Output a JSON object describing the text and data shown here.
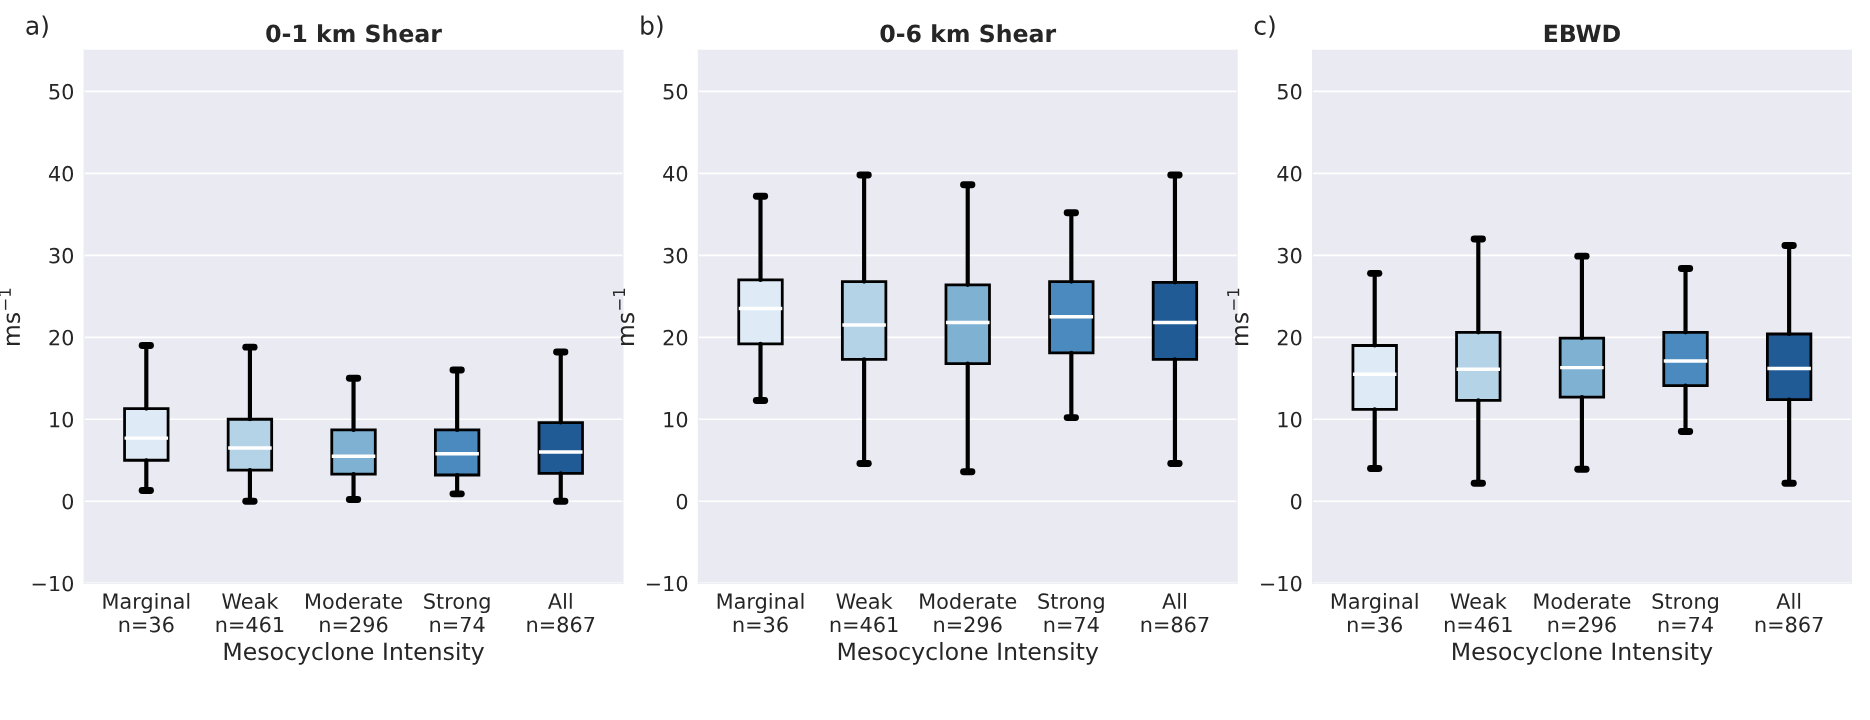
{
  "chart_data": [
    {
      "type": "box",
      "title": "0-1 km Shear",
      "xlabel": "Mesocyclone Intensity",
      "ylabel": "ms$^{−1}$",
      "annotations": [
        "a)"
      ],
      "categories": [
        "Marginal\nn=36",
        "Weak\nn=461",
        "Moderate\nn=296",
        "Strong\nn=74",
        "All\nn=867"
      ],
      "colors": [
        "#deebf7",
        "#b5d3e7",
        "#7fb1d3",
        "#4a8abe",
        "#215b96"
      ],
      "boxes": [
        {
          "low": 1.3,
          "q1": 5,
          "median": 7.7,
          "q3": 11.3,
          "high": 19
        },
        {
          "low": 0,
          "q1": 3.8,
          "median": 6.5,
          "q3": 10,
          "high": 18.8
        },
        {
          "low": 0.2,
          "q1": 3.3,
          "median": 5.5,
          "q3": 8.7,
          "high": 15
        },
        {
          "low": 0.9,
          "q1": 3.2,
          "median": 5.8,
          "q3": 8.7,
          "high": 16
        },
        {
          "low": 0,
          "q1": 3.4,
          "median": 6,
          "q3": 9.6,
          "high": 18.2
        }
      ],
      "ylim": [
        -10,
        55
      ],
      "yticks": [
        -10,
        0,
        10,
        20,
        30,
        40,
        50
      ],
      "grid": "y"
    },
    {
      "type": "box",
      "title": "0-6 km Shear",
      "xlabel": "Mesocyclone Intensity",
      "ylabel": "ms$^{−1}$",
      "annotations": [
        "b)"
      ],
      "categories": [
        "Marginal\nn=36",
        "Weak\nn=461",
        "Moderate\nn=296",
        "Strong\nn=74",
        "All\nn=867"
      ],
      "colors": [
        "#deebf7",
        "#b5d3e7",
        "#7fb1d3",
        "#4a8abe",
        "#215b96"
      ],
      "boxes": [
        {
          "low": 12.3,
          "q1": 19.2,
          "median": 23.5,
          "q3": 27,
          "high": 37.2
        },
        {
          "low": 4.6,
          "q1": 17.3,
          "median": 21.5,
          "q3": 26.8,
          "high": 39.8
        },
        {
          "low": 3.6,
          "q1": 16.8,
          "median": 21.8,
          "q3": 26.4,
          "high": 38.6
        },
        {
          "low": 10.2,
          "q1": 18.1,
          "median": 22.5,
          "q3": 26.8,
          "high": 35.2
        },
        {
          "low": 4.6,
          "q1": 17.3,
          "median": 21.8,
          "q3": 26.7,
          "high": 39.8
        }
      ],
      "ylim": [
        -10,
        55
      ],
      "yticks": [
        -10,
        0,
        10,
        20,
        30,
        40,
        50
      ],
      "grid": "y"
    },
    {
      "type": "box",
      "title": "EBWD",
      "xlabel": "Mesocyclone Intensity",
      "ylabel": "ms$^{−1}$",
      "annotations": [
        "c)"
      ],
      "categories": [
        "Marginal\nn=36",
        "Weak\nn=461",
        "Moderate\nn=296",
        "Strong\nn=74",
        "All\nn=867"
      ],
      "colors": [
        "#deebf7",
        "#b5d3e7",
        "#7fb1d3",
        "#4a8abe",
        "#215b96"
      ],
      "boxes": [
        {
          "low": 4,
          "q1": 11.2,
          "median": 15.5,
          "q3": 19,
          "high": 27.8
        },
        {
          "low": 2.2,
          "q1": 12.3,
          "median": 16.1,
          "q3": 20.6,
          "high": 32
        },
        {
          "low": 3.9,
          "q1": 12.7,
          "median": 16.3,
          "q3": 19.9,
          "high": 29.9
        },
        {
          "low": 8.5,
          "q1": 14.1,
          "median": 17.1,
          "q3": 20.6,
          "high": 28.4
        },
        {
          "low": 2.2,
          "q1": 12.4,
          "median": 16.2,
          "q3": 20.4,
          "high": 31.2
        }
      ],
      "ylim": [
        -10,
        55
      ],
      "yticks": [
        -10,
        0,
        10,
        20,
        30,
        40,
        50
      ],
      "grid": "y"
    }
  ]
}
